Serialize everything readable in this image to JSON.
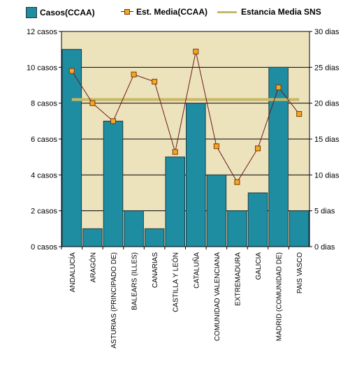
{
  "legend": {
    "bars_label": "Casos(CCAA)",
    "line_label": "Est.  Media(CCAA)",
    "sns_label": "Estancia Media SNS"
  },
  "colors": {
    "plot_bg": "#ece3bd",
    "bar": "#1e8ca1",
    "bar_border": "#1f3d45",
    "line": "#6b1a1a",
    "marker_fill": "#f5a623",
    "marker_border": "#7a3a00",
    "sns_line": "#c8b765",
    "grid": "#000000"
  },
  "chart_data": {
    "type": "bar",
    "categories": [
      "ANDALUCÍA",
      "ARAGÓN",
      "ASTURIAS (PRINCIPADO DE)",
      "BALEARS (ILLES)",
      "CANARIAS",
      "CASTILLA Y LEÓN",
      "CATALUÑA",
      "COMUNIDAD VALENCIANA",
      "EXTREMADURA",
      "GALICIA",
      "MADRID (COMUNIDAD DE)",
      "PAIS VASCO"
    ],
    "series": [
      {
        "name": "Casos(CCAA)",
        "type": "bar",
        "axis": "left",
        "values": [
          11,
          1,
          7,
          2,
          1,
          5,
          8,
          4,
          2,
          3,
          10,
          2
        ]
      },
      {
        "name": "Est.  Media(CCAA)",
        "type": "line",
        "axis": "right",
        "values": [
          24.5,
          20.0,
          17.5,
          24.0,
          23.0,
          13.2,
          27.2,
          14.0,
          9.0,
          13.7,
          22.2,
          18.5
        ]
      },
      {
        "name": "Estancia Media SNS",
        "type": "line",
        "axis": "right",
        "values": [
          20.5,
          20.5,
          20.5,
          20.5,
          20.5,
          20.5,
          20.5,
          20.5,
          20.5,
          20.5,
          20.5,
          20.5
        ]
      }
    ],
    "ylim_left": [
      0,
      12
    ],
    "yticks_left": [
      0,
      2,
      4,
      6,
      8,
      10,
      12
    ],
    "ytick_labels_left": [
      "0 casos",
      "2 casos",
      "4 casos",
      "6 casos",
      "8 casos",
      "10 casos",
      "12 casos"
    ],
    "ylim_right": [
      0,
      30
    ],
    "yticks_right": [
      0,
      5,
      10,
      15,
      20,
      25,
      30
    ],
    "ytick_labels_right": [
      "0 dias",
      "5 dias",
      "10 dias",
      "15 dias",
      "20 dias",
      "25 dias",
      "30 dias"
    ],
    "title": "",
    "xlabel": "",
    "ylabel": "",
    "grid": true,
    "legend_position": "top"
  }
}
